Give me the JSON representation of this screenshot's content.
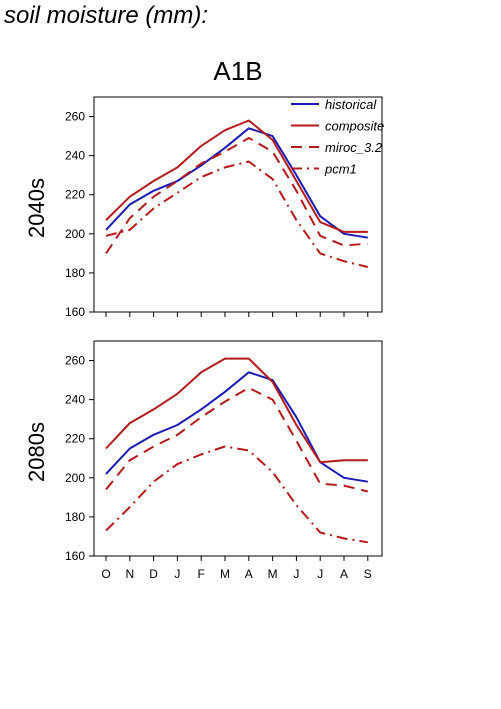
{
  "page_title": "soil moisture (mm):",
  "chart_data": {
    "type": "line",
    "title": "A1B",
    "categories": [
      "O",
      "N",
      "D",
      "J",
      "F",
      "M",
      "A",
      "M",
      "J",
      "J",
      "A",
      "S"
    ],
    "ylim": [
      160,
      270
    ],
    "yticks": [
      160,
      180,
      200,
      220,
      240,
      260
    ],
    "legend": {
      "placement": "top-right",
      "entries": [
        "historical",
        "composite",
        "miroc_3.2",
        "pcm1"
      ]
    },
    "panels": [
      {
        "row_label": "2040s",
        "series": [
          {
            "name": "historical",
            "color": "#1a1ab4",
            "dash": "solid",
            "values": [
              202,
              215,
              222,
              227,
              235,
              244,
              254,
              250,
              230,
              209,
              200,
              198
            ]
          },
          {
            "name": "composite",
            "color": "#b41a1a",
            "dash": "solid",
            "values": [
              207,
              219,
              227,
              234,
              245,
              253,
              258,
              248,
              227,
              206,
              201,
              201
            ]
          },
          {
            "name": "miroc_3.2",
            "color": "#b41a1a",
            "dash": "longdash",
            "values": [
              190,
              208,
              219,
              227,
              236,
              242,
              249,
              242,
              222,
              199,
              194,
              195
            ]
          },
          {
            "name": "pcm1",
            "color": "#b41a1a",
            "dash": "dashdot",
            "values": [
              199,
              202,
              213,
              221,
              229,
              234,
              237,
              228,
              207,
              190,
              186,
              183
            ]
          }
        ]
      },
      {
        "row_label": "2080s",
        "series": [
          {
            "name": "historical",
            "color": "#1a1ab4",
            "dash": "solid",
            "values": [
              202,
              215,
              222,
              227,
              235,
              244,
              254,
              250,
              231,
              208,
              200,
              198
            ]
          },
          {
            "name": "composite",
            "color": "#b41a1a",
            "dash": "solid",
            "values": [
              215,
              228,
              235,
              243,
              254,
              261,
              261,
              249,
              227,
              208,
              209,
              209
            ]
          },
          {
            "name": "miroc_3.2",
            "color": "#b41a1a",
            "dash": "longdash",
            "values": [
              194,
              209,
              216,
              222,
              231,
              239,
              246,
              240,
              219,
              197,
              196,
              193
            ]
          },
          {
            "name": "pcm1",
            "color": "#b41a1a",
            "dash": "dashdot",
            "values": [
              173,
              185,
              198,
              207,
              212,
              216,
              214,
              203,
              186,
              172,
              169,
              167
            ]
          }
        ]
      }
    ]
  }
}
